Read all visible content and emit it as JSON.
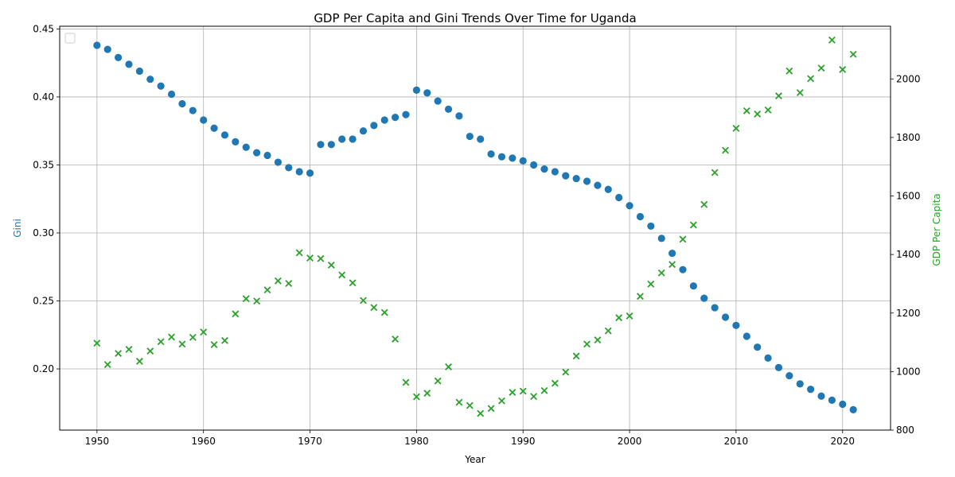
{
  "chart_data": {
    "type": "scatter",
    "title": "GDP Per Capita and Gini Trends Over Time for Uganda",
    "xlabel": "Year",
    "ylabel_left": "Gini",
    "ylabel_right": "GDP Per Capita",
    "xlim": [
      1946.5,
      2024.5
    ],
    "ylim_left": [
      0.155,
      0.452
    ],
    "ylim_right": [
      800,
      2180
    ],
    "x_ticks": [
      1950,
      1960,
      1970,
      1980,
      1990,
      2000,
      2010,
      2020
    ],
    "y_left_ticks": [
      "0.20",
      "0.25",
      "0.30",
      "0.35",
      "0.40",
      "0.45"
    ],
    "y_right_ticks": [
      800,
      1000,
      1200,
      1400,
      1600,
      1800,
      2000
    ],
    "grid": true,
    "legend_placement": "top-left",
    "colors": {
      "gini": "#1f77b4",
      "gdp": "#2ca02c"
    },
    "series": [
      {
        "name": "Gini",
        "axis": "left",
        "marker": "circle",
        "x": [
          1950,
          1951,
          1952,
          1953,
          1954,
          1955,
          1956,
          1957,
          1958,
          1959,
          1960,
          1961,
          1962,
          1963,
          1964,
          1965,
          1966,
          1967,
          1968,
          1969,
          1970,
          1971,
          1972,
          1973,
          1974,
          1975,
          1976,
          1977,
          1978,
          1979,
          1980,
          1981,
          1982,
          1983,
          1984,
          1985,
          1986,
          1987,
          1988,
          1989,
          1990,
          1991,
          1992,
          1993,
          1994,
          1995,
          1996,
          1997,
          1998,
          1999,
          2000,
          2001,
          2002,
          2003,
          2004,
          2005,
          2006,
          2007,
          2008,
          2009,
          2010,
          2011,
          2012,
          2013,
          2014,
          2015,
          2016,
          2017,
          2018,
          2019,
          2020,
          2021
        ],
        "values": [
          0.438,
          0.435,
          0.429,
          0.424,
          0.419,
          0.413,
          0.408,
          0.402,
          0.395,
          0.39,
          0.383,
          0.377,
          0.372,
          0.367,
          0.363,
          0.359,
          0.357,
          0.352,
          0.348,
          0.345,
          0.344,
          0.365,
          0.365,
          0.369,
          0.369,
          0.375,
          0.379,
          0.383,
          0.385,
          0.387,
          0.405,
          0.403,
          0.397,
          0.391,
          0.386,
          0.371,
          0.369,
          0.358,
          0.356,
          0.355,
          0.353,
          0.35,
          0.347,
          0.345,
          0.342,
          0.34,
          0.338,
          0.335,
          0.332,
          0.326,
          0.32,
          0.312,
          0.305,
          0.296,
          0.285,
          0.273,
          0.261,
          0.252,
          0.245,
          0.238,
          0.232,
          0.224,
          0.216,
          0.208,
          0.201,
          0.195,
          0.189,
          0.185,
          0.18,
          0.177,
          0.174,
          0.17
        ]
      },
      {
        "name": "GDP Per Capita",
        "axis": "right",
        "marker": "x",
        "x": [
          1950,
          1951,
          1952,
          1953,
          1954,
          1955,
          1956,
          1957,
          1958,
          1959,
          1960,
          1961,
          1962,
          1963,
          1964,
          1965,
          1966,
          1967,
          1968,
          1969,
          1970,
          1971,
          1972,
          1973,
          1974,
          1975,
          1976,
          1977,
          1978,
          1979,
          1980,
          1981,
          1982,
          1983,
          1984,
          1985,
          1986,
          1987,
          1988,
          1989,
          1990,
          1991,
          1992,
          1993,
          1994,
          1995,
          1996,
          1997,
          1998,
          1999,
          2000,
          2001,
          2002,
          2003,
          2004,
          2005,
          2006,
          2007,
          2008,
          2009,
          2010,
          2011,
          2012,
          2013,
          2014,
          2015,
          2016,
          2017,
          2018,
          2019,
          2020,
          2021
        ],
        "values": [
          1097,
          1024,
          1062,
          1076,
          1035,
          1070,
          1102,
          1118,
          1094,
          1117,
          1135,
          1092,
          1106,
          1197,
          1249,
          1241,
          1279,
          1310,
          1301,
          1406,
          1388,
          1386,
          1364,
          1330,
          1303,
          1243,
          1219,
          1202,
          1111,
          963,
          914,
          926,
          968,
          1016,
          895,
          884,
          857,
          874,
          900,
          929,
          933,
          915,
          935,
          960,
          998,
          1053,
          1094,
          1108,
          1139,
          1184,
          1190,
          1257,
          1299,
          1337,
          1366,
          1452,
          1501,
          1571,
          1680,
          1756,
          1831,
          1891,
          1880,
          1894,
          1942,
          2027,
          1953,
          2001,
          2037,
          2133,
          2032,
          2084
        ]
      }
    ]
  }
}
